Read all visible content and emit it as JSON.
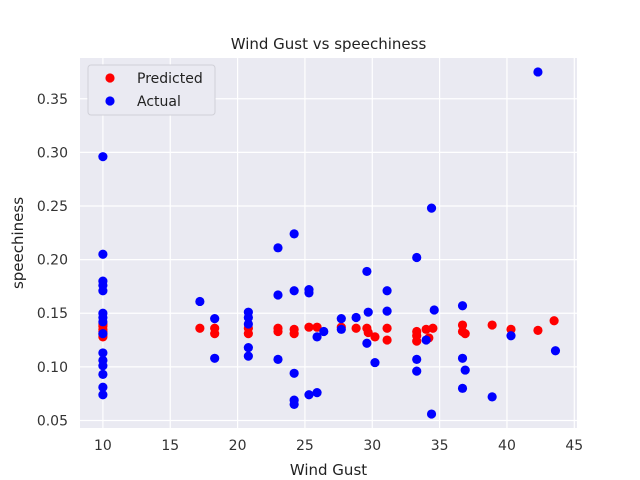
{
  "chart_data": {
    "type": "scatter",
    "title": "Wind Gust vs speechiness",
    "xlabel": "Wind Gust",
    "ylabel": "speechiness",
    "xlim": [
      8.3,
      45.2
    ],
    "ylim": [
      0.043,
      0.388
    ],
    "xticks": [
      10,
      15,
      20,
      25,
      30,
      35,
      40,
      45
    ],
    "xtick_labels": [
      "10",
      "15",
      "20",
      "25",
      "30",
      "35",
      "40",
      "45"
    ],
    "yticks": [
      0.05,
      0.1,
      0.15,
      0.2,
      0.25,
      0.3,
      0.35
    ],
    "ytick_labels": [
      "0.05",
      "0.10",
      "0.15",
      "0.20",
      "0.25",
      "0.30",
      "0.35"
    ],
    "grid": true,
    "legend_position": "top-left",
    "background": "#eaeaf2",
    "series": [
      {
        "name": "Predicted",
        "color": "#ff0000",
        "points": [
          [
            10,
            0.14
          ],
          [
            10,
            0.138
          ],
          [
            10,
            0.135
          ],
          [
            10,
            0.133
          ],
          [
            10,
            0.13
          ],
          [
            10,
            0.128
          ],
          [
            17.2,
            0.136
          ],
          [
            18.3,
            0.136
          ],
          [
            18.3,
            0.131
          ],
          [
            20.8,
            0.136
          ],
          [
            20.8,
            0.131
          ],
          [
            23.0,
            0.136
          ],
          [
            23.0,
            0.133
          ],
          [
            24.2,
            0.135
          ],
          [
            24.2,
            0.131
          ],
          [
            25.3,
            0.137
          ],
          [
            25.9,
            0.137
          ],
          [
            27.7,
            0.137
          ],
          [
            28.8,
            0.136
          ],
          [
            29.6,
            0.136
          ],
          [
            29.7,
            0.132
          ],
          [
            30.2,
            0.128
          ],
          [
            31.1,
            0.136
          ],
          [
            31.1,
            0.125
          ],
          [
            33.3,
            0.133
          ],
          [
            33.3,
            0.129
          ],
          [
            33.3,
            0.124
          ],
          [
            34.0,
            0.135
          ],
          [
            34.2,
            0.127
          ],
          [
            34.5,
            0.136
          ],
          [
            36.7,
            0.139
          ],
          [
            36.7,
            0.133
          ],
          [
            36.9,
            0.131
          ],
          [
            38.9,
            0.139
          ],
          [
            40.3,
            0.135
          ],
          [
            42.3,
            0.134
          ],
          [
            43.5,
            0.143
          ]
        ]
      },
      {
        "name": "Actual",
        "color": "#0000ff",
        "points": [
          [
            10,
            0.296
          ],
          [
            10,
            0.205
          ],
          [
            10,
            0.18
          ],
          [
            10,
            0.176
          ],
          [
            10,
            0.171
          ],
          [
            10,
            0.15
          ],
          [
            10,
            0.146
          ],
          [
            10,
            0.142
          ],
          [
            10,
            0.131
          ],
          [
            10,
            0.113
          ],
          [
            10,
            0.106
          ],
          [
            10,
            0.101
          ],
          [
            10,
            0.093
          ],
          [
            10,
            0.081
          ],
          [
            10,
            0.074
          ],
          [
            17.2,
            0.161
          ],
          [
            18.3,
            0.145
          ],
          [
            18.3,
            0.108
          ],
          [
            20.8,
            0.151
          ],
          [
            20.8,
            0.146
          ],
          [
            20.8,
            0.14
          ],
          [
            20.8,
            0.118
          ],
          [
            20.8,
            0.11
          ],
          [
            23.0,
            0.211
          ],
          [
            23.0,
            0.167
          ],
          [
            23.0,
            0.107
          ],
          [
            24.2,
            0.224
          ],
          [
            24.2,
            0.171
          ],
          [
            24.2,
            0.094
          ],
          [
            24.2,
            0.069
          ],
          [
            24.2,
            0.065
          ],
          [
            25.3,
            0.172
          ],
          [
            25.3,
            0.169
          ],
          [
            25.3,
            0.074
          ],
          [
            25.9,
            0.128
          ],
          [
            25.9,
            0.076
          ],
          [
            26.4,
            0.133
          ],
          [
            27.7,
            0.145
          ],
          [
            27.7,
            0.135
          ],
          [
            28.8,
            0.146
          ],
          [
            29.6,
            0.189
          ],
          [
            29.7,
            0.151
          ],
          [
            29.6,
            0.122
          ],
          [
            30.2,
            0.104
          ],
          [
            31.1,
            0.171
          ],
          [
            31.1,
            0.152
          ],
          [
            33.3,
            0.202
          ],
          [
            33.3,
            0.107
          ],
          [
            33.3,
            0.096
          ],
          [
            34.0,
            0.125
          ],
          [
            34.4,
            0.248
          ],
          [
            34.4,
            0.056
          ],
          [
            34.6,
            0.153
          ],
          [
            36.7,
            0.157
          ],
          [
            36.7,
            0.108
          ],
          [
            36.7,
            0.08
          ],
          [
            36.9,
            0.097
          ],
          [
            38.9,
            0.072
          ],
          [
            40.3,
            0.129
          ],
          [
            42.3,
            0.375
          ],
          [
            43.6,
            0.115
          ]
        ]
      }
    ]
  }
}
